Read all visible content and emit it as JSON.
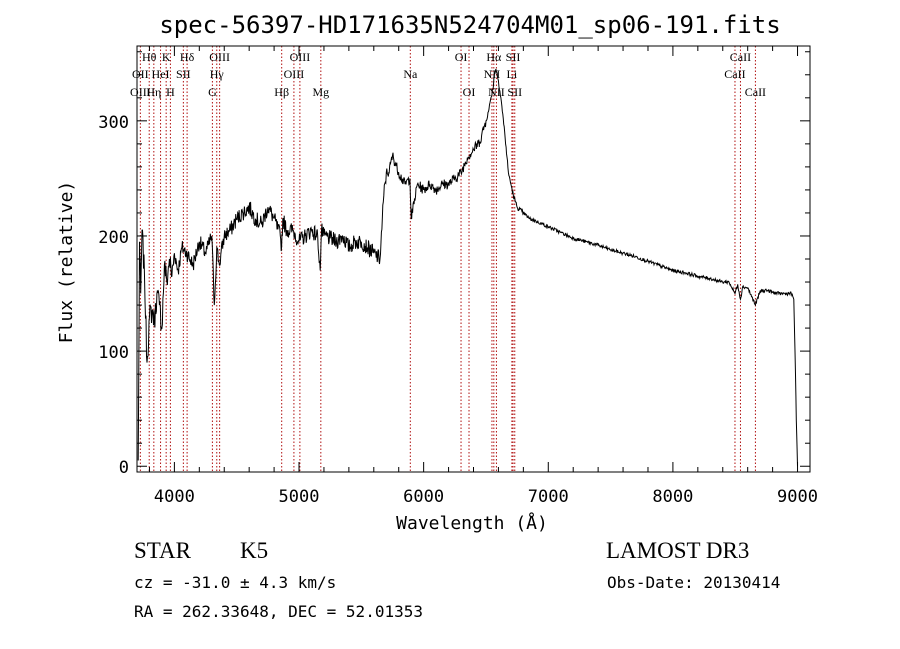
{
  "chart_data": {
    "type": "line",
    "title": "spec-56397-HD171635N524704M01_sp06-191.fits",
    "xlabel": "Wavelength (Å)",
    "ylabel": "Flux (relative)",
    "xlim": [
      3700,
      9100
    ],
    "ylim": [
      -5,
      365
    ],
    "x_ticks": [
      4000,
      5000,
      6000,
      7000,
      8000,
      9000
    ],
    "x_tick_labels": [
      "4000",
      "5000",
      "6000",
      "7000",
      "8000",
      "9000"
    ],
    "y_ticks": [
      0,
      100,
      200,
      300
    ],
    "y_tick_labels": [
      "0",
      "100",
      "200",
      "300"
    ],
    "grid": false,
    "series": [
      {
        "name": "flux",
        "x": [
          3710,
          3720,
          3730,
          3740,
          3760,
          3780,
          3800,
          3820,
          3840,
          3860,
          3880,
          3900,
          3920,
          3940,
          3960,
          3980,
          4000,
          4030,
          4060,
          4100,
          4150,
          4200,
          4250,
          4300,
          4320,
          4340,
          4360,
          4400,
          4450,
          4500,
          4550,
          4600,
          4650,
          4700,
          4750,
          4800,
          4850,
          4860,
          4870,
          4900,
          4950,
          5000,
          5050,
          5100,
          5150,
          5170,
          5180,
          5200,
          5250,
          5300,
          5350,
          5400,
          5450,
          5500,
          5550,
          5600,
          5650,
          5680,
          5700,
          5720,
          5750,
          5800,
          5850,
          5890,
          5900,
          5950,
          6000,
          6050,
          6100,
          6150,
          6200,
          6250,
          6300,
          6350,
          6400,
          6450,
          6500,
          6520,
          6540,
          6560,
          6565,
          6580,
          6600,
          6620,
          6650,
          6680,
          6700,
          6720,
          6750,
          6800,
          6850,
          6900,
          7000,
          7100,
          7200,
          7300,
          7400,
          7500,
          7600,
          7700,
          7800,
          7900,
          8000,
          8100,
          8200,
          8300,
          8400,
          8450,
          8498,
          8520,
          8542,
          8560,
          8600,
          8662,
          8700,
          8750,
          8800,
          8850,
          8900,
          8950,
          8970,
          8980,
          8990,
          9000
        ],
        "values": [
          5,
          195,
          150,
          205,
          165,
          90,
          130,
          135,
          125,
          150,
          140,
          120,
          175,
          160,
          180,
          165,
          185,
          170,
          190,
          185,
          175,
          195,
          185,
          200,
          140,
          190,
          175,
          200,
          205,
          215,
          220,
          225,
          215,
          210,
          225,
          215,
          200,
          190,
          215,
          205,
          205,
          195,
          200,
          205,
          200,
          170,
          205,
          200,
          198,
          195,
          200,
          190,
          195,
          195,
          190,
          185,
          180,
          235,
          255,
          255,
          270,
          255,
          245,
          250,
          215,
          245,
          240,
          245,
          240,
          245,
          245,
          250,
          255,
          268,
          275,
          282,
          300,
          308,
          320,
          330,
          340,
          345,
          335,
          320,
          290,
          255,
          245,
          235,
          225,
          220,
          215,
          213,
          208,
          203,
          198,
          195,
          192,
          188,
          185,
          182,
          178,
          174,
          170,
          168,
          165,
          163,
          160,
          160,
          150,
          158,
          145,
          156,
          155,
          140,
          152,
          153,
          151,
          150,
          150,
          150,
          145,
          100,
          40,
          0
        ]
      }
    ],
    "line_labels": [
      {
        "label": "Hθ",
        "wl": 3798,
        "row": 1
      },
      {
        "label": "OII",
        "wl": 3727,
        "row": 2
      },
      {
        "label": "OIII",
        "wl": 3727,
        "row": 3
      },
      {
        "label": "K",
        "wl": 3934,
        "row": 1
      },
      {
        "label": "HeI",
        "wl": 3889,
        "row": 2
      },
      {
        "label": "Hη",
        "wl": 3835,
        "row": 3
      },
      {
        "label": "SII",
        "wl": 4072,
        "row": 2
      },
      {
        "label": "H",
        "wl": 3968,
        "row": 3
      },
      {
        "label": "Hδ",
        "wl": 4102,
        "row": 1
      },
      {
        "label": "OIII",
        "wl": 4363,
        "row": 1
      },
      {
        "label": "Hγ",
        "wl": 4340,
        "row": 2
      },
      {
        "label": "G",
        "wl": 4305,
        "row": 3
      },
      {
        "label": "OIII",
        "wl": 5007,
        "row": 1
      },
      {
        "label": "OIII",
        "wl": 4959,
        "row": 2
      },
      {
        "label": "Hβ",
        "wl": 4861,
        "row": 3
      },
      {
        "label": "Mg",
        "wl": 5175,
        "row": 3
      },
      {
        "label": "Na",
        "wl": 5893,
        "row": 2
      },
      {
        "label": "OI",
        "wl": 6300,
        "row": 1
      },
      {
        "label": "OI",
        "wl": 6364,
        "row": 3
      },
      {
        "label": "Hα",
        "wl": 6563,
        "row": 1
      },
      {
        "label": "SII",
        "wl": 6717,
        "row": 1
      },
      {
        "label": "NII",
        "wl": 6548,
        "row": 2
      },
      {
        "label": "Li",
        "wl": 6708,
        "row": 2
      },
      {
        "label": "NII",
        "wl": 6584,
        "row": 3
      },
      {
        "label": "SII",
        "wl": 6731,
        "row": 3
      },
      {
        "label": "CaII",
        "wl": 8542,
        "row": 1
      },
      {
        "label": "CaII",
        "wl": 8498,
        "row": 2
      },
      {
        "label": "CaII",
        "wl": 8662,
        "row": 3
      }
    ],
    "reference_lines": [
      3727,
      3798,
      3835,
      3889,
      3934,
      3968,
      4072,
      4102,
      4305,
      4340,
      4363,
      4861,
      4959,
      5007,
      5175,
      5893,
      6300,
      6364,
      6548,
      6563,
      6584,
      6708,
      6717,
      6731,
      8498,
      8542,
      8662
    ]
  },
  "info": {
    "object_class": "STAR",
    "subclass": "K5",
    "survey": "LAMOST DR3",
    "redshift": "cz = -31.0 ± 4.3 km/s",
    "obs_date": "Obs-Date: 20130414",
    "coords": "RA = 262.33648, DEC =  52.01353"
  },
  "colors": {
    "spectrum": "#000000",
    "reference_line": "#b01010",
    "axes": "#000000"
  }
}
